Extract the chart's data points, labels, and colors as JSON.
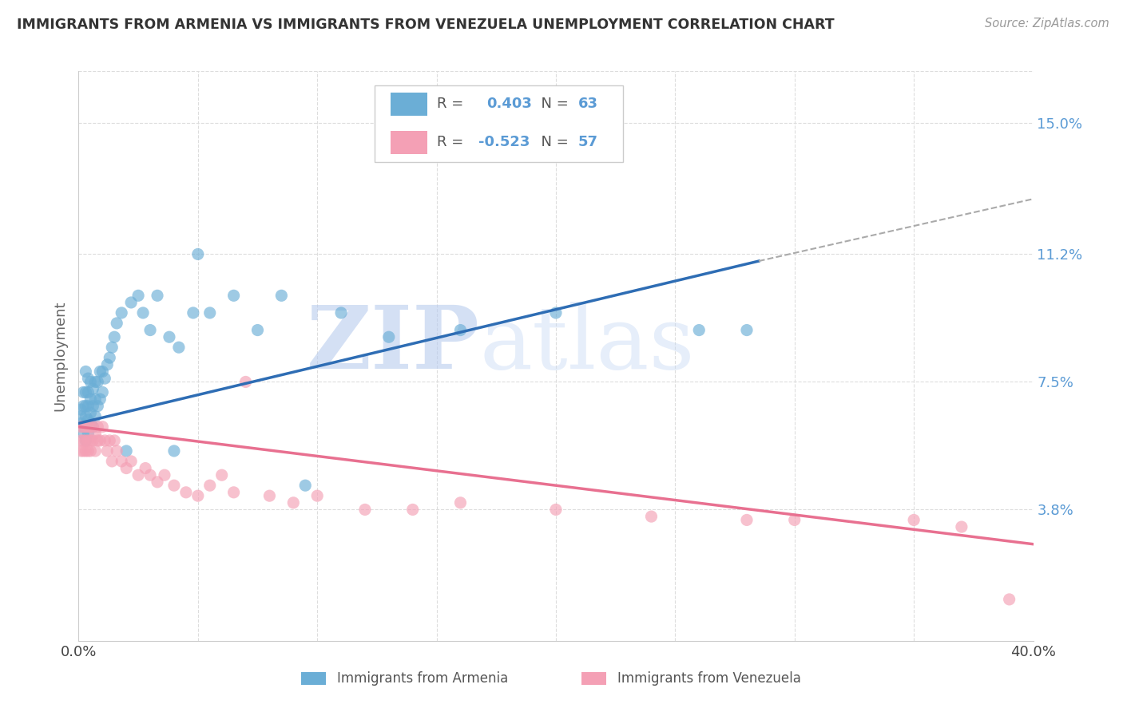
{
  "title": "IMMIGRANTS FROM ARMENIA VS IMMIGRANTS FROM VENEZUELA UNEMPLOYMENT CORRELATION CHART",
  "source": "Source: ZipAtlas.com",
  "ylabel": "Unemployment",
  "yticks": [
    0.038,
    0.075,
    0.112,
    0.15
  ],
  "ytick_labels": [
    "3.8%",
    "7.5%",
    "11.2%",
    "15.0%"
  ],
  "xlim": [
    0.0,
    0.4
  ],
  "ylim": [
    0.0,
    0.165
  ],
  "armenia_color": "#6baed6",
  "venezuela_color": "#f4a0b5",
  "armenia_R": 0.403,
  "armenia_N": 63,
  "venezuela_R": -0.523,
  "venezuela_N": 57,
  "armenia_line_start_y": 0.063,
  "armenia_line_end_y": 0.11,
  "armenia_line_x_solid_end": 0.285,
  "armenia_line_x_dash_end": 0.4,
  "armenia_line_dash_end_y": 0.128,
  "venezuela_line_start_y": 0.062,
  "venezuela_line_end_y": 0.028,
  "armenia_scatter_x": [
    0.001,
    0.001,
    0.001,
    0.002,
    0.002,
    0.002,
    0.002,
    0.003,
    0.003,
    0.003,
    0.003,
    0.003,
    0.003,
    0.004,
    0.004,
    0.004,
    0.004,
    0.004,
    0.005,
    0.005,
    0.005,
    0.005,
    0.006,
    0.006,
    0.006,
    0.007,
    0.007,
    0.007,
    0.008,
    0.008,
    0.009,
    0.009,
    0.01,
    0.01,
    0.011,
    0.012,
    0.013,
    0.014,
    0.015,
    0.016,
    0.018,
    0.02,
    0.022,
    0.025,
    0.027,
    0.03,
    0.033,
    0.038,
    0.042,
    0.048,
    0.055,
    0.065,
    0.075,
    0.085,
    0.095,
    0.11,
    0.13,
    0.16,
    0.2,
    0.26,
    0.28,
    0.04,
    0.05
  ],
  "armenia_scatter_y": [
    0.063,
    0.065,
    0.067,
    0.06,
    0.062,
    0.068,
    0.072,
    0.058,
    0.062,
    0.065,
    0.068,
    0.072,
    0.078,
    0.06,
    0.064,
    0.068,
    0.072,
    0.076,
    0.063,
    0.066,
    0.07,
    0.075,
    0.062,
    0.068,
    0.073,
    0.065,
    0.07,
    0.075,
    0.068,
    0.075,
    0.07,
    0.078,
    0.072,
    0.078,
    0.076,
    0.08,
    0.082,
    0.085,
    0.088,
    0.092,
    0.095,
    0.055,
    0.098,
    0.1,
    0.095,
    0.09,
    0.1,
    0.088,
    0.085,
    0.095,
    0.095,
    0.1,
    0.09,
    0.1,
    0.045,
    0.095,
    0.088,
    0.09,
    0.095,
    0.09,
    0.09,
    0.055,
    0.112
  ],
  "venezuela_scatter_x": [
    0.001,
    0.001,
    0.001,
    0.002,
    0.002,
    0.002,
    0.003,
    0.003,
    0.003,
    0.004,
    0.004,
    0.004,
    0.005,
    0.005,
    0.005,
    0.006,
    0.006,
    0.007,
    0.007,
    0.008,
    0.008,
    0.009,
    0.01,
    0.011,
    0.012,
    0.013,
    0.014,
    0.015,
    0.016,
    0.018,
    0.02,
    0.022,
    0.025,
    0.028,
    0.03,
    0.033,
    0.036,
    0.04,
    0.045,
    0.05,
    0.055,
    0.06,
    0.065,
    0.07,
    0.08,
    0.09,
    0.1,
    0.12,
    0.14,
    0.16,
    0.2,
    0.24,
    0.28,
    0.3,
    0.35,
    0.37,
    0.39
  ],
  "venezuela_scatter_y": [
    0.055,
    0.058,
    0.062,
    0.055,
    0.058,
    0.062,
    0.055,
    0.058,
    0.062,
    0.055,
    0.058,
    0.062,
    0.055,
    0.058,
    0.062,
    0.058,
    0.062,
    0.055,
    0.06,
    0.058,
    0.062,
    0.058,
    0.062,
    0.058,
    0.055,
    0.058,
    0.052,
    0.058,
    0.055,
    0.052,
    0.05,
    0.052,
    0.048,
    0.05,
    0.048,
    0.046,
    0.048,
    0.045,
    0.043,
    0.042,
    0.045,
    0.048,
    0.043,
    0.075,
    0.042,
    0.04,
    0.042,
    0.038,
    0.038,
    0.04,
    0.038,
    0.036,
    0.035,
    0.035,
    0.035,
    0.033,
    0.012
  ],
  "background_color": "#ffffff",
  "grid_color": "#dddddd",
  "text_color_blue": "#5b9bd5",
  "watermark_color": "#cfe0f0"
}
